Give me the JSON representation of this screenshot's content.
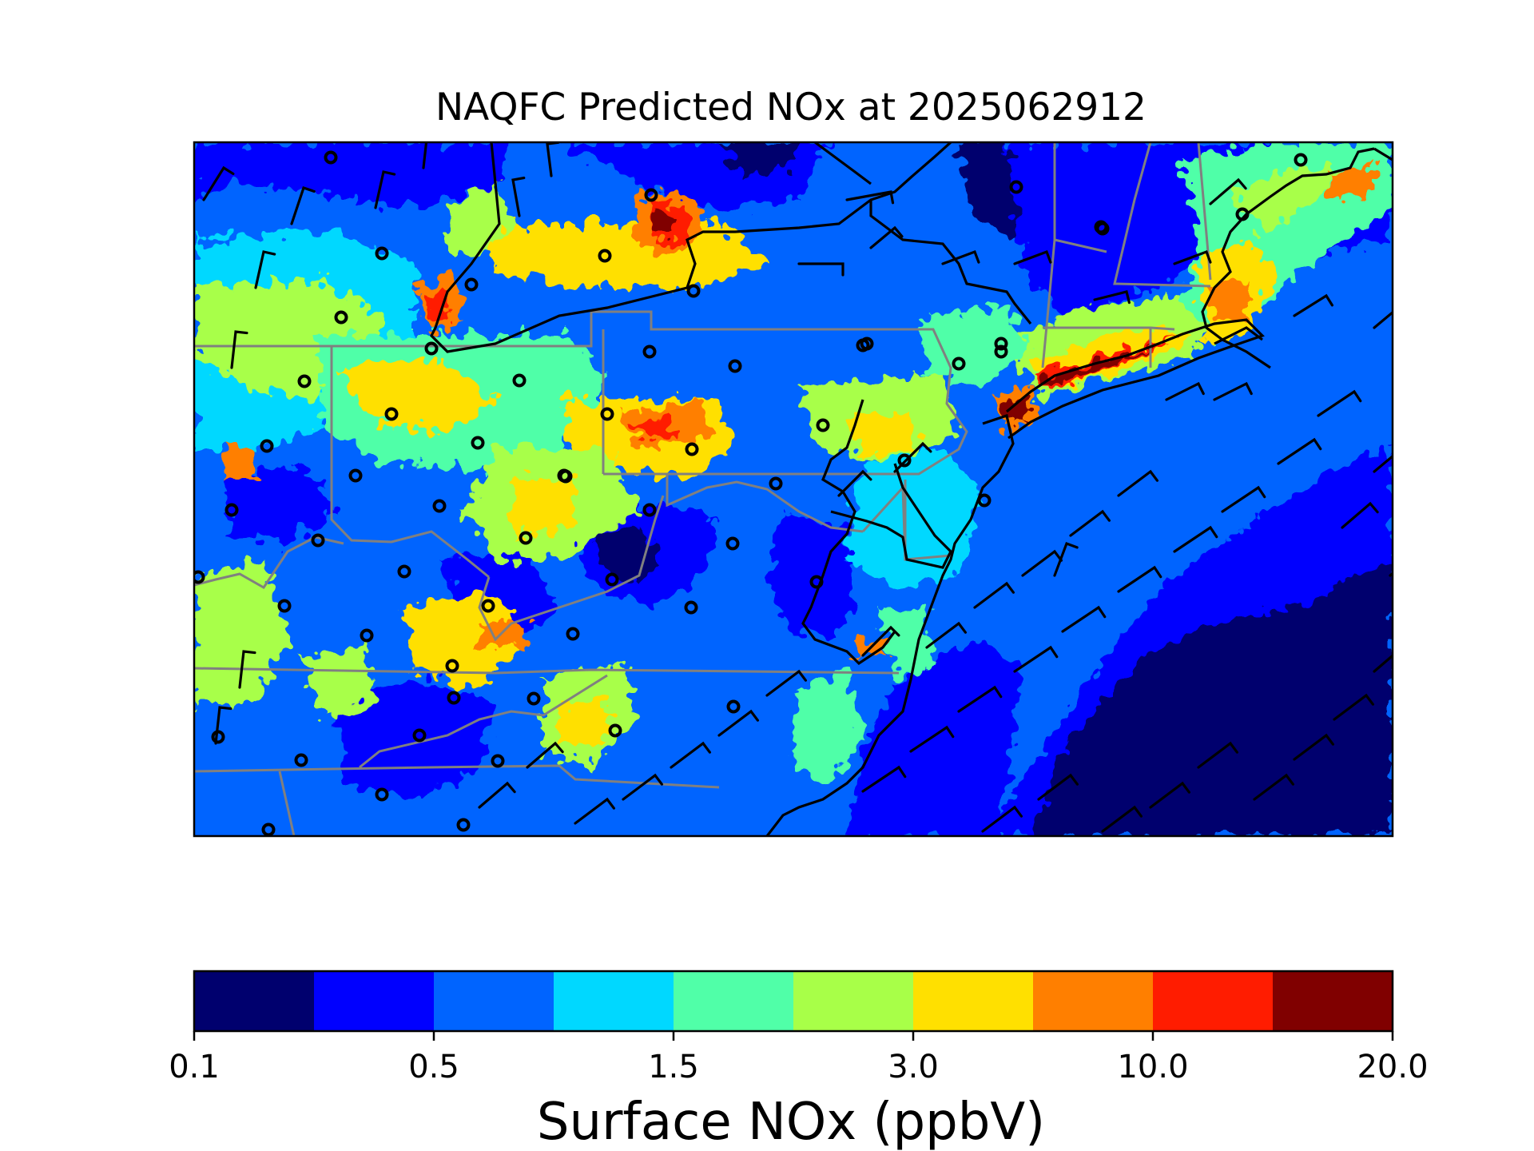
{
  "figure": {
    "title": "NAQFC Predicted NOx at 2025062912",
    "map_name": "Northeastern United States surface NOx forecast",
    "map_style": "gridded model field with state boundaries (gray), coastlines and Great Lakes shorelines (black), monitoring-site circles and wind barbs"
  },
  "colorbar": {
    "label": "Surface NOx (ppbV)",
    "tick_labels": [
      "0.1",
      "0.5",
      "1.5",
      "3.0",
      "10.0",
      "20.0"
    ],
    "bin_count": 10,
    "colors": [
      "#00006e",
      "#0000ff",
      "#0064ff",
      "#00d8ff",
      "#50ffa8",
      "#a8ff48",
      "#ffe000",
      "#ff7f00",
      "#ff1c00",
      "#800000"
    ]
  },
  "legend_semantics": {
    "site_marker": "circle",
    "wind_marker": "barb"
  }
}
